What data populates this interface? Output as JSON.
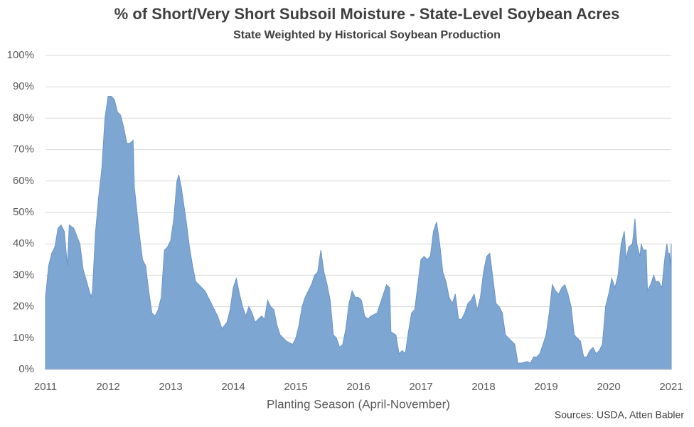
{
  "chart_data": {
    "type": "area",
    "title": "% of Short/Very Short Subsoil Moisture - State-Level Soybean Acres",
    "subtitle": "State Weighted by Historical Soybean Production",
    "x_label": "Planting Season (April-November)",
    "source": "Sources: USDA, Atten Babler",
    "color": "#7ea6d3",
    "grid": true,
    "xlim": [
      2011,
      2021
    ],
    "xticks": [
      2011,
      2012,
      2013,
      2014,
      2015,
      2016,
      2017,
      2018,
      2019,
      2020,
      2021
    ],
    "ylim": [
      0,
      100
    ],
    "yticks": [
      {
        "value": 0,
        "label": "0%"
      },
      {
        "value": 10,
        "label": "10%"
      },
      {
        "value": 20,
        "label": "20%"
      },
      {
        "value": 30,
        "label": "30%"
      },
      {
        "value": 40,
        "label": "40%"
      },
      {
        "value": 50,
        "label": "50%"
      },
      {
        "value": 60,
        "label": "60%"
      },
      {
        "value": 70,
        "label": "70%"
      },
      {
        "value": 80,
        "label": "80%"
      },
      {
        "value": 90,
        "label": "90%"
      },
      {
        "value": 100,
        "label": "100%"
      }
    ],
    "x": [
      2011.0,
      2011.05,
      2011.1,
      2011.15,
      2011.2,
      2011.25,
      2011.3,
      2011.35,
      2011.38,
      2011.45,
      2011.55,
      2011.6,
      2011.7,
      2011.73,
      2011.75,
      2011.8,
      2011.85,
      2011.9,
      2011.95,
      2012.0,
      2012.05,
      2012.1,
      2012.15,
      2012.2,
      2012.25,
      2012.3,
      2012.35,
      2012.4,
      2012.42,
      2012.5,
      2012.55,
      2012.6,
      2012.65,
      2012.7,
      2012.75,
      2012.8,
      2012.85,
      2012.9,
      2012.95,
      2013.0,
      2013.05,
      2013.1,
      2013.13,
      2013.17,
      2013.25,
      2013.3,
      2013.35,
      2013.4,
      2013.45,
      2013.55,
      2013.65,
      2013.75,
      2013.82,
      2013.9,
      2013.95,
      2014.0,
      2014.05,
      2014.1,
      2014.15,
      2014.2,
      2014.25,
      2014.3,
      2014.35,
      2014.4,
      2014.45,
      2014.5,
      2014.55,
      2014.6,
      2014.65,
      2014.7,
      2014.75,
      2014.8,
      2014.85,
      2014.95,
      2015.0,
      2015.05,
      2015.1,
      2015.15,
      2015.2,
      2015.25,
      2015.3,
      2015.35,
      2015.4,
      2015.45,
      2015.5,
      2015.55,
      2015.6,
      2015.65,
      2015.7,
      2015.75,
      2015.8,
      2015.85,
      2015.9,
      2015.95,
      2016.0,
      2016.05,
      2016.1,
      2016.15,
      2016.2,
      2016.3,
      2016.4,
      2016.45,
      2016.5,
      2016.52,
      2016.6,
      2016.65,
      2016.7,
      2016.75,
      2016.8,
      2016.85,
      2016.9,
      2016.95,
      2017.0,
      2017.05,
      2017.1,
      2017.15,
      2017.2,
      2017.25,
      2017.3,
      2017.35,
      2017.4,
      2017.45,
      2017.5,
      2017.55,
      2017.6,
      2017.65,
      2017.7,
      2017.75,
      2017.8,
      2017.85,
      2017.9,
      2017.95,
      2018.0,
      2018.05,
      2018.1,
      2018.15,
      2018.2,
      2018.25,
      2018.3,
      2018.35,
      2018.45,
      2018.5,
      2018.55,
      2018.6,
      2018.7,
      2018.75,
      2018.8,
      2018.85,
      2018.9,
      2018.95,
      2019.0,
      2019.05,
      2019.1,
      2019.15,
      2019.2,
      2019.25,
      2019.3,
      2019.35,
      2019.4,
      2019.45,
      2019.5,
      2019.55,
      2019.6,
      2019.65,
      2019.7,
      2019.75,
      2019.8,
      2019.85,
      2019.9,
      2019.95,
      2020.0,
      2020.05,
      2020.1,
      2020.15,
      2020.2,
      2020.25,
      2020.28,
      2020.32,
      2020.38,
      2020.42,
      2020.45,
      2020.5,
      2020.52,
      2020.55,
      2020.6,
      2020.62,
      2020.67,
      2020.72,
      2020.75,
      2020.8,
      2020.85,
      2020.9,
      2020.93,
      2020.95,
      2020.97,
      2020.985,
      2021.0
    ],
    "values": [
      23,
      33,
      37,
      39,
      45,
      46,
      44,
      33,
      46,
      45,
      40,
      32,
      25,
      23,
      25,
      44,
      55,
      64,
      80,
      87,
      87,
      86,
      82,
      81,
      77,
      72,
      72,
      73,
      58,
      43,
      35,
      33,
      25,
      18,
      17,
      19,
      23,
      38,
      39,
      41,
      48,
      60,
      62,
      58,
      47,
      39,
      33,
      28,
      27,
      25,
      21,
      17,
      13,
      15,
      19,
      26,
      29,
      24,
      20,
      17,
      20,
      18,
      15,
      16,
      17,
      16,
      22,
      20,
      19,
      14,
      11,
      10,
      9,
      8,
      10,
      14,
      20,
      23,
      25,
      27,
      30,
      31,
      38,
      31,
      27,
      22,
      11,
      10,
      7,
      8,
      13,
      21,
      25,
      23,
      23,
      22,
      17,
      16,
      17,
      18,
      24,
      27,
      26,
      12,
      11,
      5,
      6,
      5,
      12,
      18,
      19,
      27,
      35,
      36,
      35,
      36,
      44,
      47,
      40,
      31,
      28,
      23,
      21,
      24,
      16,
      16,
      18,
      21,
      22,
      24,
      19,
      23,
      31,
      36,
      37,
      29,
      21,
      20,
      18,
      11,
      9,
      8,
      2,
      2,
      2.5,
      2,
      4,
      4,
      5,
      8,
      11,
      18,
      27,
      25,
      24,
      26,
      27,
      24,
      20,
      11,
      10,
      9,
      4,
      4,
      6,
      7,
      5,
      6,
      8,
      20,
      24,
      29,
      26,
      30,
      40,
      44,
      35,
      39,
      40,
      48,
      40,
      36,
      40,
      38,
      38,
      25,
      27,
      30,
      28,
      28,
      26,
      36,
      40,
      37,
      37,
      33,
      40
    ]
  }
}
